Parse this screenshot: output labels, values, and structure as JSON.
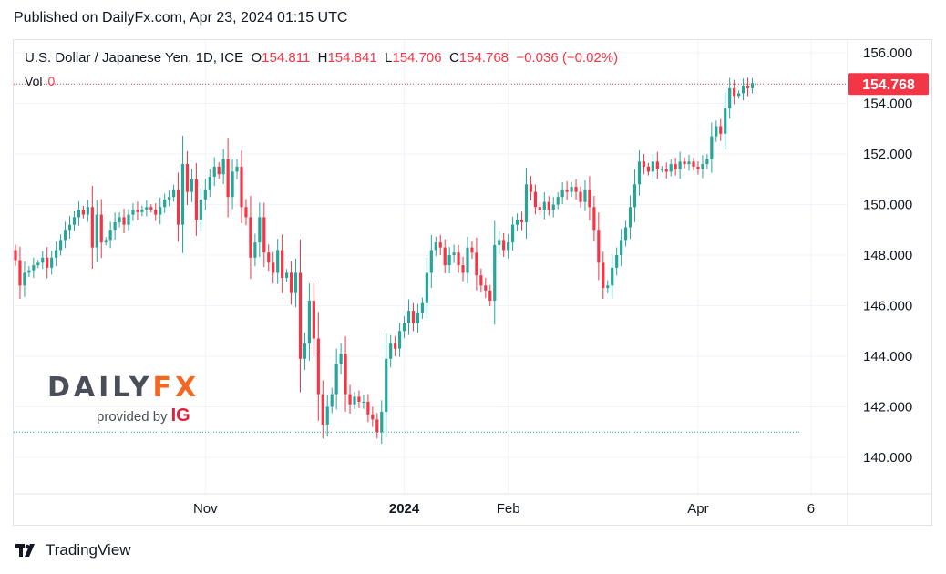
{
  "published": "Published on DailyFx.com, Apr 23, 2024 01:15 UTC",
  "legend": {
    "title": "U.S. Dollar / Japanese Yen, 1D, ICE",
    "o_label": "O",
    "o_value": "154.811",
    "h_label": "H",
    "h_value": "154.841",
    "l_label": "L",
    "l_value": "154.706",
    "c_label": "C",
    "c_value": "154.768",
    "change": "−0.036 (−0.02%)",
    "vol_label": "Vol",
    "vol_value": "0"
  },
  "price_tag": "154.768",
  "watermark": {
    "brand_a": "DAILY",
    "brand_b": "FX",
    "provided_by": "provided by",
    "ig": "IG"
  },
  "footer": {
    "brand": "TradingView"
  },
  "colors": {
    "up": "#26a69a",
    "down": "#f23645",
    "last": "#f23645",
    "low_line": "#26a69a"
  },
  "chart_data": {
    "type": "candlestick",
    "symbol": "USDJPY",
    "timeframe": "1D",
    "y_ticks": [
      "156.000",
      "154.000",
      "152.000",
      "150.000",
      "148.000",
      "146.000",
      "144.000",
      "142.000",
      "140.000"
    ],
    "ylim": [
      139.0,
      156.5
    ],
    "x_ticks": [
      {
        "label": "Nov",
        "bold": false,
        "index": 42
      },
      {
        "label": "2024",
        "bold": true,
        "index": 86
      },
      {
        "label": "Feb",
        "bold": false,
        "index": 109
      },
      {
        "label": "Apr",
        "bold": false,
        "index": 151
      },
      {
        "label": "6",
        "bold": false,
        "index": 176
      }
    ],
    "last_price": 154.768,
    "low_marker": 141.0,
    "grid": true,
    "closes": [
      147.8,
      146.8,
      147.3,
      147.4,
      147.6,
      147.7,
      147.9,
      147.5,
      147.9,
      148.2,
      148.6,
      149.0,
      149.2,
      149.5,
      149.8,
      149.6,
      149.9,
      148.3,
      149.6,
      148.5,
      148.6,
      149.0,
      149.3,
      149.5,
      149.2,
      149.6,
      149.8,
      149.7,
      149.8,
      149.9,
      149.8,
      149.6,
      149.9,
      150.2,
      150.3,
      150.6,
      149.2,
      151.6,
      150.5,
      151.0,
      149.4,
      150.2,
      150.6,
      151.1,
      151.5,
      151.2,
      151.8,
      150.3,
      151.3,
      151.5,
      149.9,
      149.5,
      147.9,
      148.5,
      149.5,
      148.1,
      147.7,
      147.3,
      148.2,
      147.1,
      147.3,
      146.5,
      147.3,
      143.9,
      144.5,
      146.2,
      144.7,
      142.5,
      141.3,
      142.0,
      142.5,
      143.7,
      144.1,
      142.5,
      142.1,
      142.4,
      142.2,
      142.2,
      141.7,
      141.5,
      141.0,
      141.8,
      143.9,
      144.5,
      144.3,
      145.0,
      145.3,
      145.8,
      145.3,
      145.7,
      146.1,
      147.3,
      148.2,
      148.5,
      148.3,
      147.6,
      148.0,
      148.1,
      147.6,
      147.3,
      148.3,
      148.1,
      147.2,
      146.8,
      146.6,
      146.2,
      148.4,
      148.6,
      148.2,
      148.5,
      149.2,
      149.4,
      149.3,
      150.8,
      150.5,
      149.9,
      149.8,
      150.1,
      149.8,
      150.0,
      150.3,
      150.6,
      150.5,
      150.7,
      150.5,
      150.1,
      150.6,
      149.9,
      149.0,
      147.7,
      146.7,
      146.8,
      147.5,
      148.0,
      148.6,
      149.1,
      149.9,
      150.8,
      151.7,
      151.5,
      151.3,
      151.7,
      151.4,
      151.4,
      151.3,
      151.6,
      151.4,
      151.7,
      151.6,
      151.7,
      151.5,
      151.4,
      151.6,
      151.8,
      152.7,
      153.1,
      152.8,
      153.8,
      154.6,
      154.3,
      154.4,
      154.7,
      154.6,
      154.8
    ]
  }
}
